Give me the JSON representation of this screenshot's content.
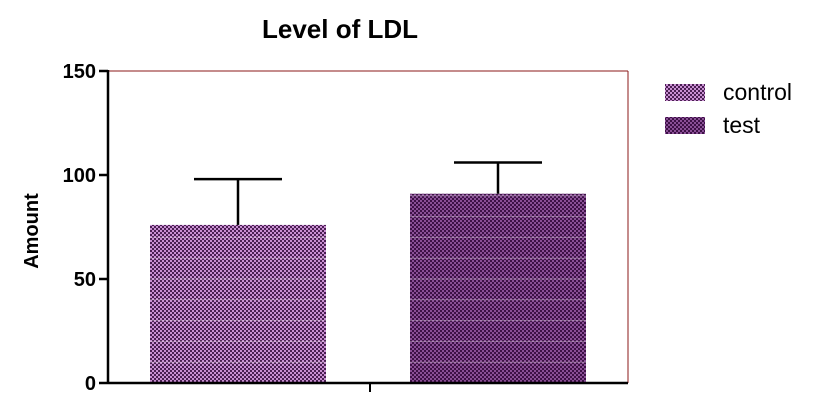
{
  "chart_data": {
    "type": "bar",
    "title": "Level of LDL",
    "xlabel": "",
    "ylabel": "Amount",
    "categories": [
      "control",
      "test"
    ],
    "series": [
      {
        "name": "control",
        "value": 76,
        "error": 22,
        "color": "#c98fd2",
        "pattern_color": "#4a1f52"
      },
      {
        "name": "test",
        "value": 91,
        "error": 15,
        "color": "#3d1146",
        "pattern_color": "#8a4f96"
      }
    ],
    "ylim": [
      0,
      150
    ],
    "yticks": [
      0,
      50,
      100,
      150
    ],
    "yticks_labels": [
      "0",
      "50",
      "100",
      "150"
    ],
    "grid": false,
    "legend_position": "top-right",
    "frame_color": "#8b1a1a"
  }
}
